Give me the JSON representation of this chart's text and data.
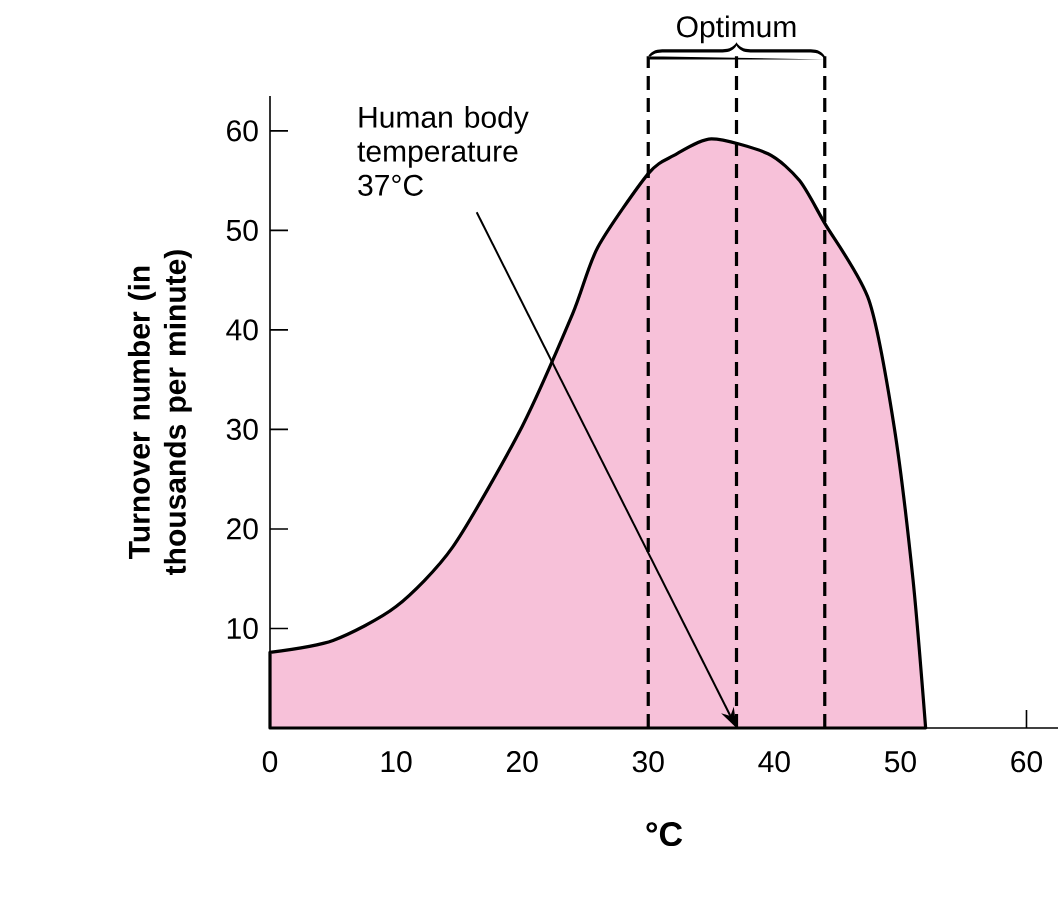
{
  "chart_data": {
    "type": "area",
    "xlabel": "°C",
    "ylabel": "Turnover number (in thousands per minute)",
    "x": [
      0,
      5,
      10,
      14.5,
      20,
      24,
      26,
      30,
      32,
      35,
      39.5,
      42,
      44,
      47.5,
      49.5,
      51,
      52
    ],
    "series": [
      {
        "color": "#f7c1d9",
        "values": [
          7.6,
          8.8,
          12.2,
          18.2,
          30.3,
          41.6,
          48.3,
          55.7,
          57.5,
          59.2,
          57.7,
          55,
          50.7,
          43,
          30.3,
          14.9,
          0
        ]
      }
    ],
    "xlim": [
      0,
      62.5
    ],
    "ylim": [
      0,
      63.5
    ],
    "xticks": [
      0,
      10,
      20,
      30,
      40,
      50,
      60
    ],
    "yticks": [
      10,
      20,
      30,
      40,
      50,
      60
    ],
    "ref_lines": [
      {
        "axis": "x",
        "value": 30,
        "line_style": "dashed",
        "color": "#000000"
      },
      {
        "axis": "x",
        "value": 37,
        "line_style": "dashed",
        "color": "#000000"
      },
      {
        "axis": "x",
        "value": 44,
        "line_style": "dashed",
        "color": "#000000"
      }
    ],
    "annotations": [
      "Optimum",
      {
        "text": "Human body temperature 37°C",
        "x": 37,
        "y": 0
      }
    ],
    "grid": false
  }
}
